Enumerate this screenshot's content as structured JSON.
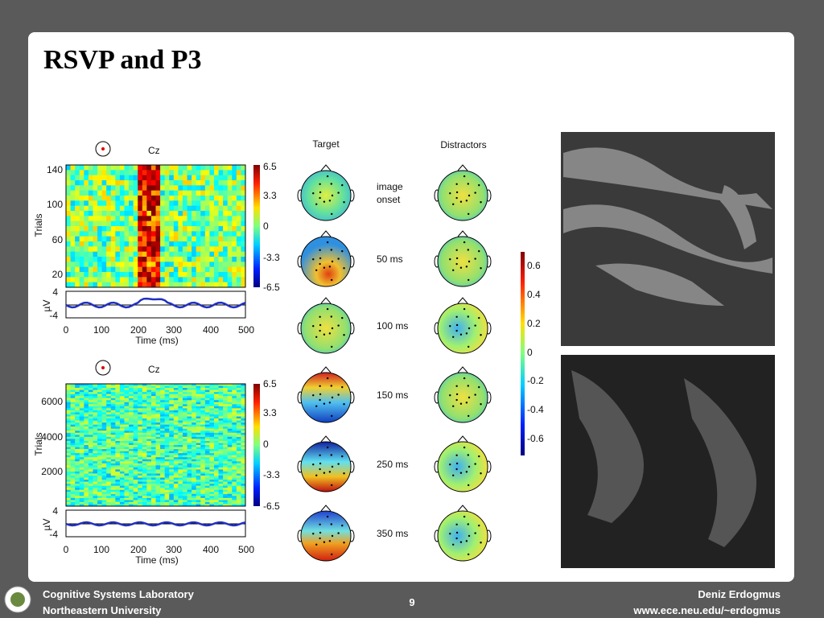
{
  "slide": {
    "title": "RSVP and P3",
    "figure": {
      "panels": [
        {
          "channel": "Cz",
          "y_label": "Trials",
          "y_ticks": [
            "140",
            "100",
            "60",
            "20"
          ],
          "colorbar_ticks": [
            "6.5",
            "3.3",
            "0",
            "-3.3",
            "-6.5"
          ],
          "erp_label": "µV",
          "erp_ticks": [
            "4",
            "-4"
          ],
          "x_ticks": [
            "0",
            "100",
            "200",
            "300",
            "400",
            "500"
          ],
          "x_label": "Time (ms)"
        },
        {
          "channel": "Cz",
          "y_label": "Trials",
          "y_ticks": [
            "6000",
            "4000",
            "2000"
          ],
          "colorbar_ticks": [
            "6.5",
            "3.3",
            "0",
            "-3.3",
            "-6.5"
          ],
          "erp_label": "µV",
          "erp_ticks": [
            "4",
            "-4"
          ],
          "x_ticks": [
            "0",
            "100",
            "200",
            "300",
            "400",
            "500"
          ],
          "x_label": "Time (ms)"
        }
      ],
      "scalp": {
        "columns": [
          "Target",
          "Distractors"
        ],
        "rows": [
          [
            "image",
            "onset"
          ],
          [
            "50 ms"
          ],
          [
            "100 ms"
          ],
          [
            "150 ms"
          ],
          [
            "250 ms"
          ],
          [
            "350 ms"
          ]
        ],
        "colorbar_ticks": [
          "0.6",
          "0.4",
          "0.2",
          "0",
          "-0.2",
          "-0.4",
          "-0.6"
        ]
      }
    },
    "footer": {
      "left": [
        "Cognitive Systems Laboratory",
        "Northeastern University"
      ],
      "page": "9",
      "right": [
        "Deniz Erdogmus",
        "www.ece.neu.edu/~erdogmus"
      ]
    }
  }
}
